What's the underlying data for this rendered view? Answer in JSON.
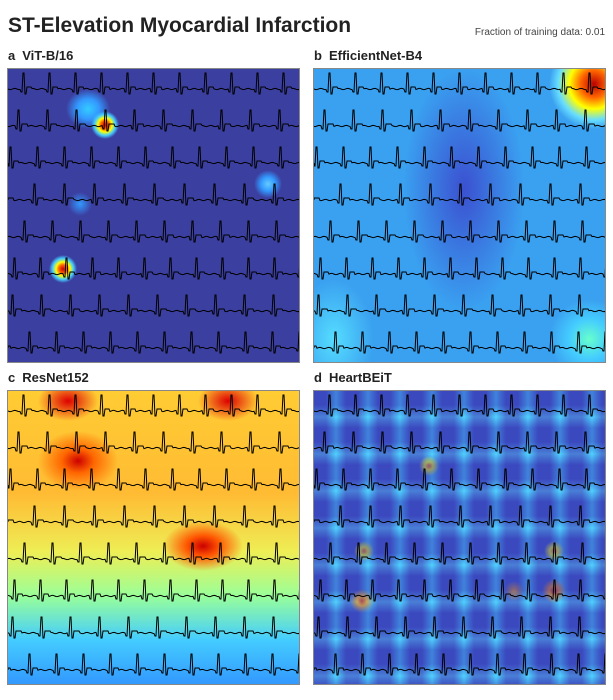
{
  "figure": {
    "title": "ST-Elevation Myocardial Infarction",
    "fraction_label": "Fraction of training data: 0.01"
  },
  "panels": [
    {
      "letter": "a",
      "model": "ViT-B/16"
    },
    {
      "letter": "b",
      "model": "EfficientNet-B4"
    },
    {
      "letter": "c",
      "model": "ResNet152"
    },
    {
      "letter": "d",
      "model": "HeartBEiT"
    }
  ],
  "colors": {
    "trace": "#000000",
    "colormap_low": "#3b3fa0",
    "colormap_high": "#c00000"
  }
}
